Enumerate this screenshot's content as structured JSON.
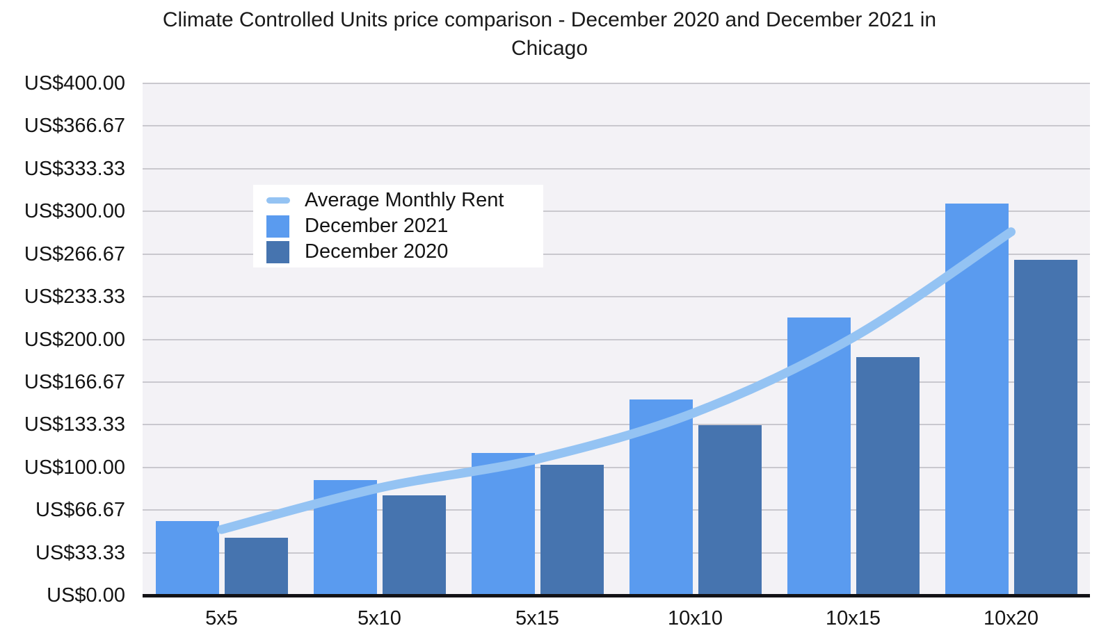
{
  "title": {
    "line1": "Climate Controlled Units price comparison - December 2020 and December 2021 in",
    "line2": "Chicago",
    "full": "Climate Controlled Units price comparison - December 2020 and December 2021 in Chicago"
  },
  "legend": {
    "entries": [
      {
        "label": "Average Monthly Rent",
        "swatch": "line",
        "series": "Average Monthly Rent"
      },
      {
        "label": "December 2021",
        "swatch": "square",
        "series": "December 2021"
      },
      {
        "label": "December 2020",
        "swatch": "square",
        "series": "December 2020"
      }
    ]
  },
  "axes": {
    "y_tick_labels_top_to_bottom": [
      "US$400.00",
      "US$366.67",
      "US$333.33",
      "US$300.00",
      "US$266.67",
      "US$233.33",
      "US$200.00",
      "US$166.67",
      "US$133.33",
      "US$100.00",
      "US$66.67",
      "US$33.33",
      "US$0.00"
    ]
  },
  "chart_data": {
    "type": "bar",
    "title": "Climate Controlled Units price comparison - December 2020 and December 2021 in Chicago",
    "categories": [
      "5x5",
      "5x10",
      "5x15",
      "10x10",
      "10x15",
      "10x20"
    ],
    "series": [
      {
        "name": "December 2021",
        "type": "bar",
        "color": "#5A9BEF",
        "values": [
          58,
          90,
          111,
          153,
          217,
          306
        ]
      },
      {
        "name": "December 2020",
        "type": "bar",
        "color": "#4674AF",
        "values": [
          45,
          78,
          102,
          133,
          186,
          262
        ]
      },
      {
        "name": "Average Monthly Rent",
        "type": "line",
        "color": "#94C3F3",
        "values": [
          51.5,
          84,
          106.5,
          143,
          201.5,
          284
        ]
      }
    ],
    "currency_prefix": "US$",
    "ylim": [
      0,
      400
    ],
    "ytick_interval": 33.33,
    "grid": true,
    "legend_position": "inside top-left",
    "plot_background": "#F3F2F6",
    "gridline_color": "#C9C8CE",
    "axis_line_color": "#121216"
  }
}
